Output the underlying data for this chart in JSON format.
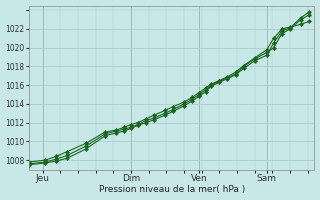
{
  "bg_color": "#c8e8e8",
  "grid_color": "#a8c8c8",
  "line_color": "#1a6620",
  "marker_color": "#1a6620",
  "xlabel_text": "Pression niveau de la mer( hPa )",
  "ylim": [
    1007,
    1024.5
  ],
  "yticks": [
    1008,
    1010,
    1012,
    1014,
    1016,
    1018,
    1020,
    1022
  ],
  "day_labels": [
    "Jeu",
    "Dim",
    "Ven",
    "Sam"
  ],
  "day_positions": [
    0.05,
    0.375,
    0.625,
    0.875
  ],
  "vline_positions": [
    0.05,
    0.375,
    0.625,
    0.875
  ],
  "xlim": [
    0.0,
    1.05
  ],
  "lines": [
    {
      "x": [
        0.0,
        0.06,
        0.1,
        0.14,
        0.21,
        0.28,
        0.32,
        0.35,
        0.375,
        0.4,
        0.43,
        0.46,
        0.5,
        0.53,
        0.57,
        0.6,
        0.625,
        0.65,
        0.67,
        0.7,
        0.73,
        0.76,
        0.79,
        0.83,
        0.875,
        0.9,
        0.93,
        0.96,
        1.0,
        1.03
      ],
      "y": [
        1007.6,
        1007.8,
        1008.1,
        1008.5,
        1009.5,
        1010.8,
        1011.1,
        1011.3,
        1011.5,
        1011.8,
        1012.2,
        1012.5,
        1013.0,
        1013.4,
        1014.0,
        1014.5,
        1015.0,
        1015.5,
        1016.0,
        1016.4,
        1016.8,
        1017.2,
        1018.0,
        1018.8,
        1019.5,
        1020.0,
        1021.5,
        1022.0,
        1023.0,
        1023.5
      ]
    },
    {
      "x": [
        0.0,
        0.06,
        0.1,
        0.14,
        0.21,
        0.28,
        0.32,
        0.35,
        0.375,
        0.4,
        0.43,
        0.46,
        0.5,
        0.53,
        0.57,
        0.6,
        0.625,
        0.65,
        0.67,
        0.7,
        0.73,
        0.76,
        0.79,
        0.83,
        0.875,
        0.9,
        0.93,
        0.96,
        1.0,
        1.03
      ],
      "y": [
        1007.8,
        1008.0,
        1008.4,
        1008.9,
        1009.8,
        1011.0,
        1011.2,
        1011.5,
        1011.8,
        1012.0,
        1012.4,
        1012.8,
        1013.3,
        1013.7,
        1014.2,
        1014.7,
        1015.2,
        1015.7,
        1016.1,
        1016.5,
        1016.9,
        1017.4,
        1018.1,
        1018.9,
        1019.8,
        1021.0,
        1022.0,
        1022.2,
        1022.5,
        1022.8
      ]
    },
    {
      "x": [
        0.0,
        0.06,
        0.1,
        0.14,
        0.21,
        0.28,
        0.32,
        0.35,
        0.375,
        0.4,
        0.43,
        0.46,
        0.5,
        0.53,
        0.57,
        0.6,
        0.625,
        0.65,
        0.67,
        0.7,
        0.73,
        0.76,
        0.79,
        0.83,
        0.875,
        0.9,
        0.93,
        0.96,
        1.0,
        1.03
      ],
      "y": [
        1007.5,
        1007.7,
        1007.9,
        1008.2,
        1009.2,
        1010.6,
        1010.9,
        1011.1,
        1011.4,
        1011.7,
        1012.0,
        1012.3,
        1012.8,
        1013.2,
        1013.8,
        1014.3,
        1014.8,
        1015.3,
        1015.9,
        1016.3,
        1016.7,
        1017.1,
        1017.8,
        1018.6,
        1019.2,
        1020.5,
        1021.8,
        1022.1,
        1023.2,
        1023.8
      ]
    }
  ]
}
